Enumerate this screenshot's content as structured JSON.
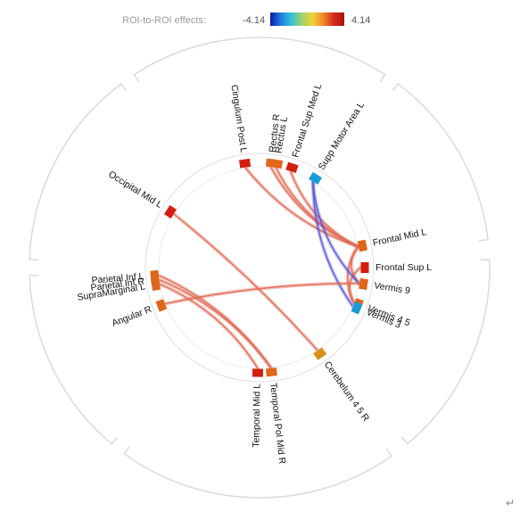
{
  "legend": {
    "title": "ROI-to-ROI effects:",
    "min_label": "-4.14",
    "max_label": "4.14",
    "colormap": [
      "#0a1aa8",
      "#1f7be0",
      "#35c4d8",
      "#9fd26a",
      "#f2d23a",
      "#f08a2a",
      "#d42a1a",
      "#a8130f"
    ]
  },
  "chart_data": {
    "type": "connectome-ring",
    "value_range": [
      -4.14,
      4.14
    ],
    "nodes": [
      {
        "id": "cingulum_post_l",
        "label": "Cingulum Post L",
        "angle_deg": -8,
        "color": "#d21f12"
      },
      {
        "id": "rectus_r",
        "label": "Rectus R",
        "angle_deg": 6.5,
        "color": "#e0661a"
      },
      {
        "id": "rectus_l",
        "label": "Rectus L",
        "angle_deg": 9.5,
        "color": "#e0661a"
      },
      {
        "id": "frontal_sup_med_l",
        "label": "Frontal Sup Med L",
        "angle_deg": 18,
        "color": "#d21f12"
      },
      {
        "id": "supp_motor_area_l",
        "label": "Supp Motor Area L",
        "angle_deg": 32,
        "color": "#1a9bd8"
      },
      {
        "id": "frontal_mid_l",
        "label": "Frontal Mid L",
        "angle_deg": 78,
        "color": "#e0661a"
      },
      {
        "id": "frontal_sup_l",
        "label": "Frontal Sup L",
        "angle_deg": 90,
        "color": "#d21f12"
      },
      {
        "id": "vermis_9",
        "label": "Vermis 9",
        "angle_deg": 99,
        "color": "#e0661a"
      },
      {
        "id": "vermis_4_5",
        "label": "Vermis 4 5",
        "angle_deg": 110.5,
        "color": "#e0661a"
      },
      {
        "id": "vermis_3",
        "label": "Vermis 3",
        "angle_deg": 112.5,
        "color": "#1a9bd8"
      },
      {
        "id": "cerebelum_4_5_r",
        "label": "Cerebelum 4 5 R",
        "angle_deg": 145,
        "color": "#d98f18"
      },
      {
        "id": "temporal_pol_mid_r",
        "label": "Temporal Pol Mid R",
        "angle_deg": 173.5,
        "color": "#e0661a"
      },
      {
        "id": "temporal_mid_l",
        "label": "Temporal Mid L",
        "angle_deg": 181,
        "color": "#d21f12"
      },
      {
        "id": "angular_r",
        "label": "Angular R",
        "angle_deg": 249,
        "color": "#e0661a"
      },
      {
        "id": "supramarginal_l",
        "label": "SupraMarginal L",
        "angle_deg": 260.5,
        "color": "#e0661a"
      },
      {
        "id": "parietal_inf_r",
        "label": "Parietal Inf R",
        "angle_deg": 263,
        "color": "#e0661a"
      },
      {
        "id": "parietal_inf_l",
        "label": "Parietal Inf L",
        "angle_deg": 265.5,
        "color": "#e0661a"
      },
      {
        "id": "occipital_mid_l",
        "label": "Occipital Mid L",
        "angle_deg": 302,
        "color": "#d21f12"
      }
    ],
    "edges": [
      {
        "source": "cingulum_post_l",
        "target": "frontal_mid_l",
        "sign": "positive"
      },
      {
        "source": "rectus_r",
        "target": "frontal_mid_l",
        "sign": "positive"
      },
      {
        "source": "rectus_l",
        "target": "frontal_mid_l",
        "sign": "positive"
      },
      {
        "source": "frontal_sup_med_l",
        "target": "frontal_mid_l",
        "sign": "positive"
      },
      {
        "source": "frontal_mid_l",
        "target": "vermis_4_5",
        "sign": "positive"
      },
      {
        "source": "frontal_sup_l",
        "target": "vermis_4_5",
        "sign": "positive"
      },
      {
        "source": "vermis_9",
        "target": "frontal_mid_l",
        "sign": "positive"
      },
      {
        "source": "supp_motor_area_l",
        "target": "vermis_3",
        "sign": "negative"
      },
      {
        "source": "supp_motor_area_l",
        "target": "vermis_9",
        "sign": "negative"
      },
      {
        "source": "occipital_mid_l",
        "target": "cerebelum_4_5_r",
        "sign": "positive"
      },
      {
        "source": "parietal_inf_l",
        "target": "temporal_pol_mid_r",
        "sign": "positive"
      },
      {
        "source": "parietal_inf_r",
        "target": "temporal_pol_mid_r",
        "sign": "positive"
      },
      {
        "source": "supramarginal_l",
        "target": "temporal_mid_l",
        "sign": "positive"
      },
      {
        "source": "angular_r",
        "target": "vermis_9",
        "sign": "positive"
      }
    ],
    "edge_colors": {
      "positive": "#e06a55",
      "negative": "#5a5ad8"
    }
  },
  "footer": {
    "return_mark": "↵"
  }
}
